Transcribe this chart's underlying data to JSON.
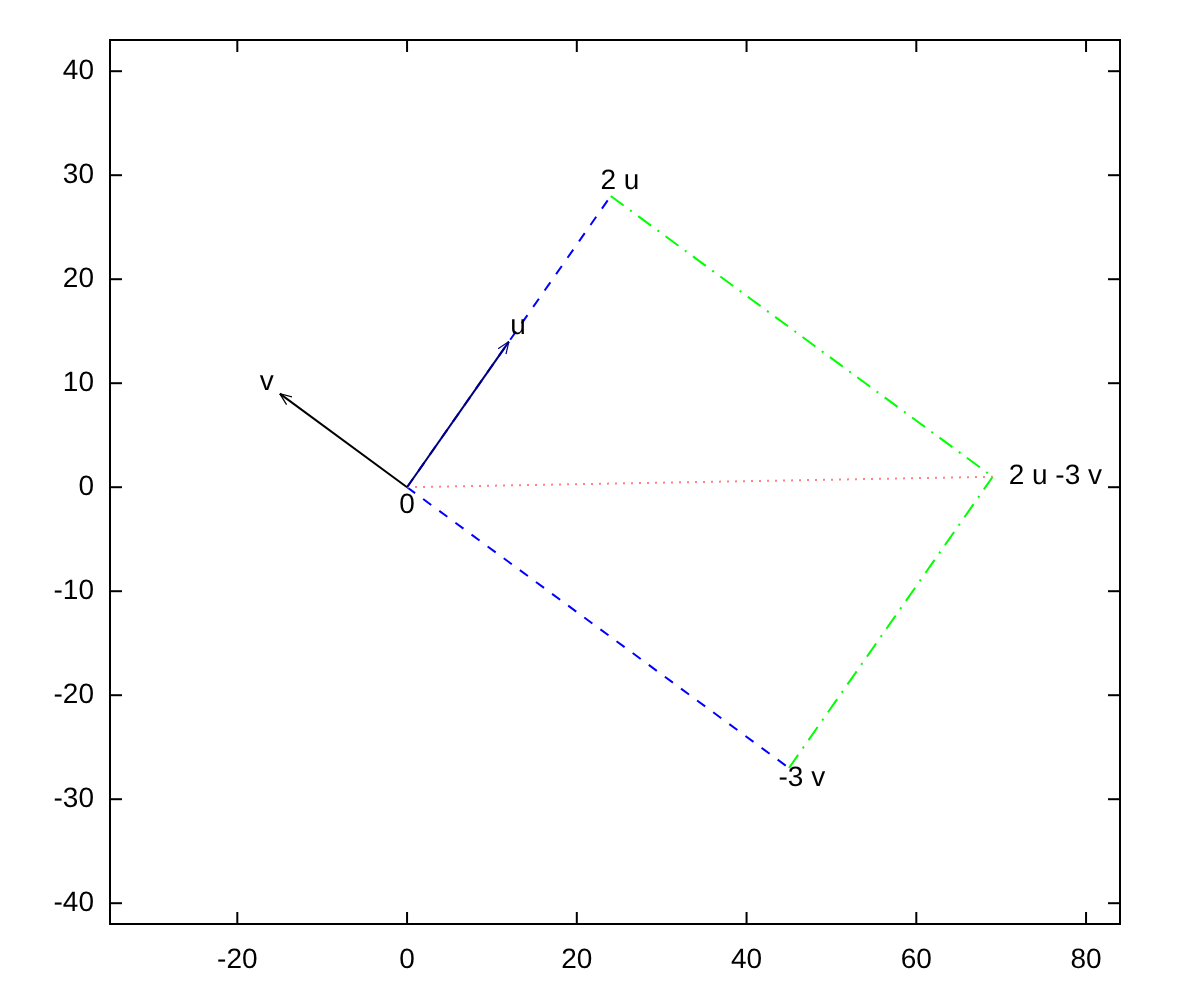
{
  "chart_data": {
    "type": "line",
    "xlim": [
      -35,
      84
    ],
    "ylim": [
      -42,
      43
    ],
    "xticks": [
      -20,
      0,
      20,
      40,
      60,
      80
    ],
    "yticks": [
      -40,
      -30,
      -20,
      -10,
      0,
      10,
      20,
      30,
      40
    ],
    "grid": false,
    "marker": "none",
    "series": [
      {
        "color": "#0000ff",
        "line_style": "dashed",
        "x": [
          0,
          24
        ],
        "values": [
          0,
          28
        ]
      },
      {
        "color": "#0000ff",
        "line_style": "dashed",
        "x": [
          0,
          45
        ],
        "values": [
          0,
          -27
        ]
      },
      {
        "color": "#00ff00",
        "line_style": "dashdot",
        "x": [
          24,
          69
        ],
        "values": [
          28,
          1
        ]
      },
      {
        "color": "#00ff00",
        "line_style": "dashdot",
        "x": [
          45,
          69
        ],
        "values": [
          -27,
          1
        ]
      },
      {
        "color": "#ff8080",
        "line_style": "dotted",
        "x": [
          0,
          69
        ],
        "values": [
          0,
          1
        ]
      },
      {
        "color": "#000080",
        "line_style": "solid",
        "x": [
          0,
          12
        ],
        "values": [
          0,
          14
        ]
      },
      {
        "color": "#000000",
        "line_style": "solid",
        "x": [
          0,
          -15
        ],
        "values": [
          0,
          9
        ]
      }
    ],
    "annotations": [
      {
        "text": "0",
        "x": 0,
        "y": 0
      },
      {
        "text": "u",
        "x": 12,
        "y": 14
      },
      {
        "text": "v",
        "x": -15,
        "y": 9
      },
      {
        "text": "2 u",
        "x": 24,
        "y": 28
      },
      {
        "text": "-3 v",
        "x": 45,
        "y": -27
      },
      {
        "text": "2 u -3 v",
        "x": 69,
        "y": 1
      }
    ]
  }
}
